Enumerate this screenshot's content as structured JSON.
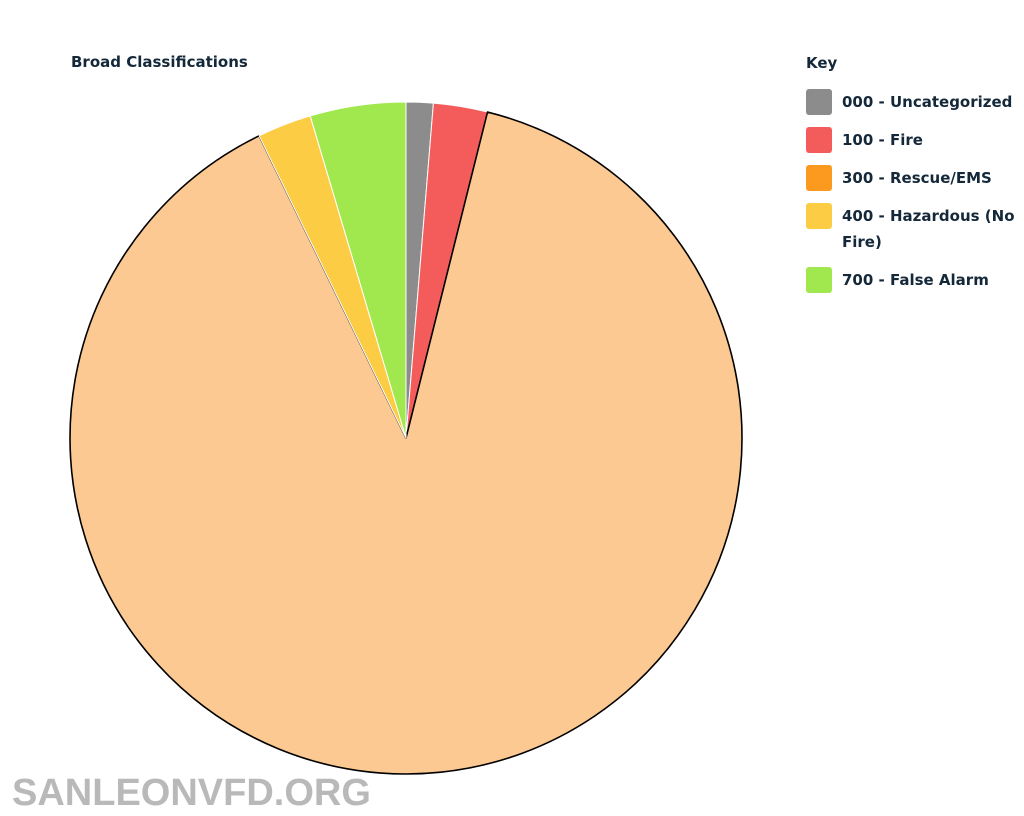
{
  "chart_data": {
    "type": "pie",
    "title": "Broad Classifications",
    "legend_title": "Key",
    "legend_position": "right",
    "slices": [
      {
        "label": "000 - Uncategorized",
        "value": 1.3,
        "color": "#8c8c8c"
      },
      {
        "label": "100 - Fire",
        "value": 2.6,
        "color": "#f45b5b"
      },
      {
        "label": "300 - Rescue/EMS",
        "value": 88.9,
        "color": "#fcc992"
      },
      {
        "label": "400 - Hazardous (No Fire)",
        "value": 2.6,
        "color": "#fccc44"
      },
      {
        "label": "700 - False Alarm",
        "value": 4.6,
        "color": "#a0e84e"
      }
    ],
    "legend": [
      {
        "label": "000 - Uncategorized",
        "color": "#8c8c8c"
      },
      {
        "label": "100 - Fire",
        "color": "#f45b5b"
      },
      {
        "label": "300 - Rescue/EMS",
        "color": "#fb9a1f"
      },
      {
        "label": "400 - Hazardous (No Fire)",
        "color": "#fccc44"
      },
      {
        "label": "700 - False Alarm",
        "color": "#a0e84e"
      }
    ]
  },
  "watermark": "SANLEONVFD.ORG"
}
